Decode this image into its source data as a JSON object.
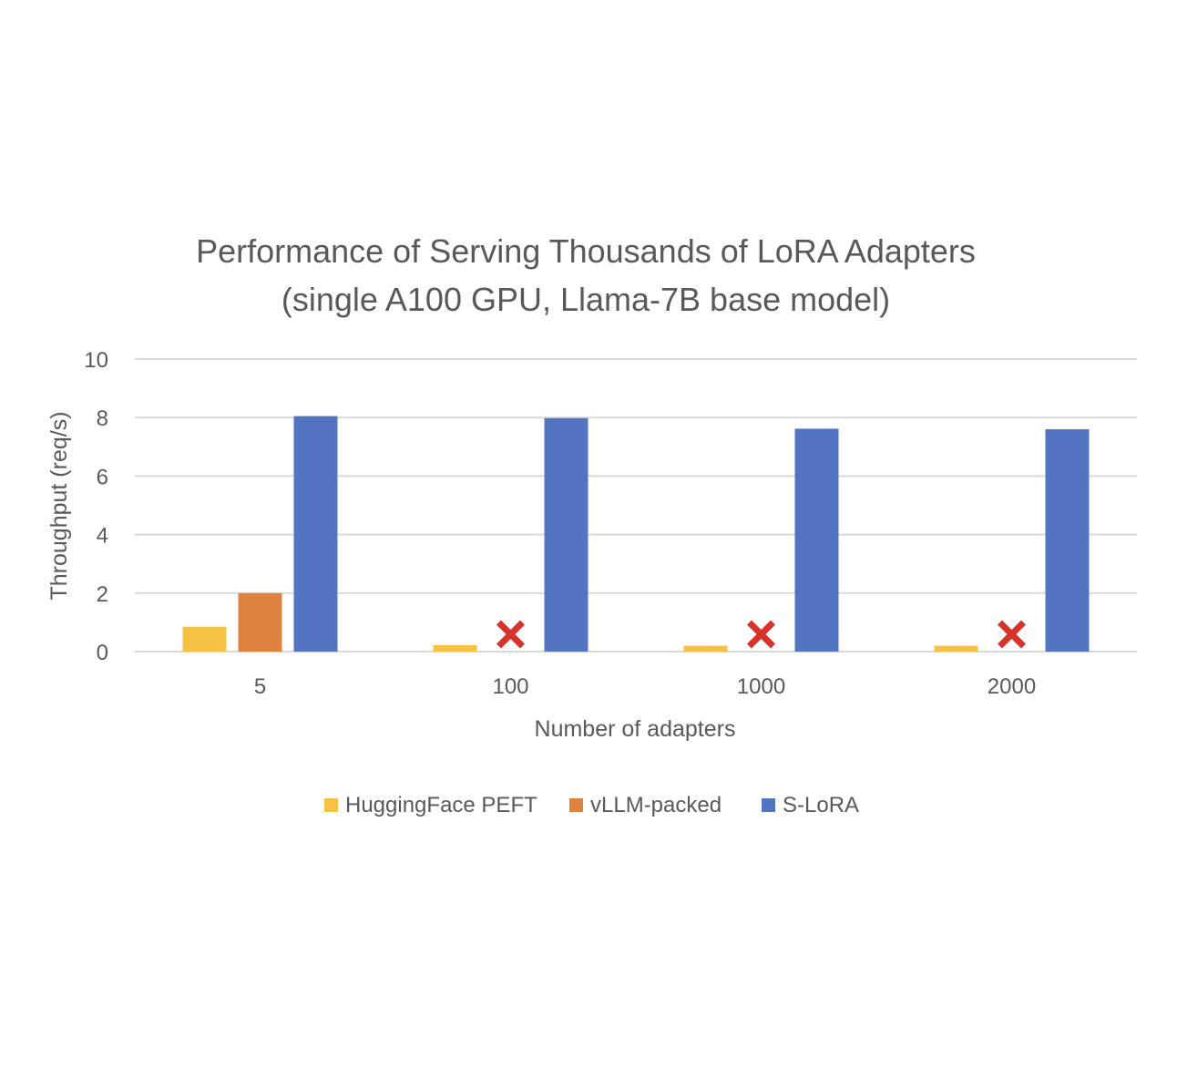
{
  "chart_data": {
    "type": "bar",
    "title_lines": [
      "Performance of Serving Thousands of LoRA Adapters",
      "(single A100 GPU, Llama-7B base model)"
    ],
    "xlabel": "Number of adapters",
    "ylabel": "Throughput (req/s)",
    "categories": [
      "5",
      "100",
      "1000",
      "2000"
    ],
    "ylim": [
      0,
      10
    ],
    "yticks": [
      "0",
      "2",
      "4",
      "6",
      "8",
      "10"
    ],
    "grid": true,
    "legend_position": "bottom",
    "series": [
      {
        "name": "HuggingFace PEFT",
        "color": "#F5C243",
        "values": [
          0.85,
          0.22,
          0.2,
          0.2
        ]
      },
      {
        "name": "vLLM-packed",
        "color": "#E0823F",
        "values": [
          2.0,
          null,
          null,
          null
        ]
      },
      {
        "name": "S-LoRA",
        "color": "#5274C1",
        "values": [
          8.05,
          7.98,
          7.62,
          7.6
        ]
      }
    ],
    "failure_marker": {
      "series": "vLLM-packed",
      "icon": "red-x-icon",
      "color": "#D9322B",
      "categories": [
        "100",
        "1000",
        "2000"
      ]
    }
  }
}
